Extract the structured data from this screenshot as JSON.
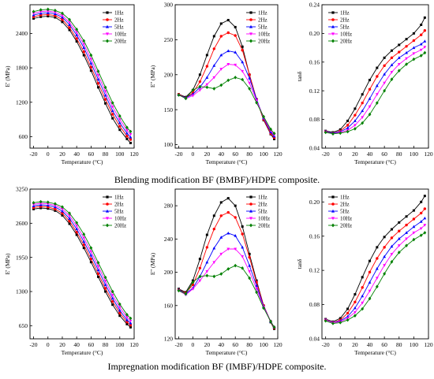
{
  "captions": {
    "top": "Blending modification BF (BMBF)/HDPE composite.",
    "bottom": "Impregnation modification BF (IMBF)/HDPE composite."
  },
  "series_colors": {
    "1Hz": "#000000",
    "2Hz": "#ff0000",
    "5Hz": "#0000ff",
    "10Hz": "#ff00ff",
    "20Hz": "#008000"
  },
  "chart_data": [
    {
      "type": "line",
      "row": "top",
      "col": 1,
      "xlabel": "Temperature (°C)",
      "ylabel": "E' (MPa)",
      "xlim": [
        -25,
        120
      ],
      "ylim": [
        400,
        2900
      ],
      "xticks": [
        "-20",
        "0",
        "20",
        "40",
        "60",
        "80",
        "100",
        "120"
      ],
      "yticks": [
        "600",
        "1200",
        "1800",
        "2400"
      ],
      "ytick_values": [
        600,
        1200,
        1800,
        2400
      ],
      "legend": "top-right",
      "x": [
        -20,
        -10,
        0,
        10,
        20,
        30,
        40,
        50,
        60,
        70,
        80,
        90,
        100,
        110,
        115
      ],
      "series": [
        {
          "name": "1Hz",
          "marker": "square",
          "values": [
            2660,
            2690,
            2700,
            2680,
            2600,
            2460,
            2260,
            2020,
            1750,
            1460,
            1180,
            920,
            720,
            560,
            490
          ]
        },
        {
          "name": "2Hz",
          "marker": "circle",
          "values": [
            2690,
            2720,
            2730,
            2710,
            2640,
            2500,
            2310,
            2080,
            1810,
            1530,
            1250,
            990,
            780,
            610,
            550
          ]
        },
        {
          "name": "5Hz",
          "marker": "triangle-up",
          "values": [
            2720,
            2750,
            2760,
            2740,
            2680,
            2550,
            2370,
            2150,
            1880,
            1600,
            1320,
            1050,
            840,
            660,
            590
          ]
        },
        {
          "name": "10Hz",
          "marker": "triangle-down",
          "values": [
            2750,
            2780,
            2790,
            2770,
            2710,
            2590,
            2420,
            2210,
            1950,
            1670,
            1390,
            1120,
            900,
            710,
            640
          ]
        },
        {
          "name": "20Hz",
          "marker": "diamond",
          "values": [
            2780,
            2810,
            2820,
            2800,
            2750,
            2640,
            2470,
            2270,
            2020,
            1740,
            1460,
            1190,
            960,
            760,
            690
          ]
        }
      ]
    },
    {
      "type": "line",
      "row": "top",
      "col": 2,
      "xlabel": "Temperature (°C)",
      "ylabel": "E'' (MPa)",
      "xlim": [
        -25,
        120
      ],
      "ylim": [
        95,
        300
      ],
      "xticks": [
        "-20",
        "0",
        "20",
        "40",
        "60",
        "80",
        "100",
        "120"
      ],
      "yticks": [
        "100",
        "150",
        "200",
        "250",
        "300"
      ],
      "ytick_values": [
        100,
        150,
        200,
        250,
        300
      ],
      "legend": "top-right",
      "x": [
        -20,
        -10,
        0,
        10,
        20,
        30,
        40,
        50,
        60,
        70,
        80,
        90,
        100,
        110,
        115
      ],
      "series": [
        {
          "name": "1Hz",
          "marker": "square",
          "values": [
            172,
            168,
            178,
            200,
            228,
            255,
            273,
            278,
            268,
            240,
            200,
            165,
            135,
            115,
            108
          ]
        },
        {
          "name": "2Hz",
          "marker": "circle",
          "values": [
            172,
            167,
            174,
            190,
            212,
            237,
            255,
            260,
            256,
            235,
            200,
            165,
            136,
            116,
            110
          ]
        },
        {
          "name": "5Hz",
          "marker": "triangle-up",
          "values": [
            171,
            167,
            172,
            182,
            196,
            213,
            228,
            234,
            232,
            218,
            195,
            165,
            138,
            118,
            112
          ]
        },
        {
          "name": "10Hz",
          "marker": "triangle-down",
          "values": [
            171,
            166,
            170,
            178,
            186,
            196,
            208,
            215,
            214,
            205,
            188,
            163,
            139,
            120,
            114
          ]
        },
        {
          "name": "20Hz",
          "marker": "diamond",
          "values": [
            171,
            166,
            178,
            183,
            182,
            180,
            185,
            192,
            196,
            193,
            180,
            160,
            140,
            122,
            116
          ]
        }
      ]
    },
    {
      "type": "line",
      "row": "top",
      "col": 3,
      "xlabel": "Temperature (°C)",
      "ylabel": "tanδ",
      "xlim": [
        -25,
        120
      ],
      "ylim": [
        0.04,
        0.24
      ],
      "xticks": [
        "-20",
        "0",
        "20",
        "40",
        "60",
        "80",
        "100",
        "120"
      ],
      "yticks": [
        "0.04",
        "0.08",
        "0.12",
        "0.16",
        "0.20",
        "0.24"
      ],
      "ytick_values": [
        0.04,
        0.08,
        0.12,
        0.16,
        0.2,
        0.24
      ],
      "legend": "top-left",
      "x": [
        -20,
        -10,
        0,
        10,
        20,
        30,
        40,
        50,
        60,
        70,
        80,
        90,
        100,
        110,
        115
      ],
      "series": [
        {
          "name": "1Hz",
          "marker": "square",
          "values": [
            0.064,
            0.062,
            0.066,
            0.078,
            0.095,
            0.115,
            0.135,
            0.152,
            0.166,
            0.176,
            0.184,
            0.192,
            0.2,
            0.212,
            0.222
          ]
        },
        {
          "name": "2Hz",
          "marker": "circle",
          "values": [
            0.063,
            0.061,
            0.064,
            0.072,
            0.086,
            0.103,
            0.122,
            0.14,
            0.155,
            0.166,
            0.174,
            0.182,
            0.19,
            0.198,
            0.204
          ]
        },
        {
          "name": "5Hz",
          "marker": "triangle-up",
          "values": [
            0.063,
            0.061,
            0.063,
            0.068,
            0.078,
            0.092,
            0.109,
            0.127,
            0.143,
            0.156,
            0.166,
            0.173,
            0.18,
            0.185,
            0.189
          ]
        },
        {
          "name": "10Hz",
          "marker": "triangle-down",
          "values": [
            0.063,
            0.06,
            0.062,
            0.065,
            0.072,
            0.083,
            0.098,
            0.115,
            0.131,
            0.146,
            0.157,
            0.165,
            0.172,
            0.177,
            0.181
          ]
        },
        {
          "name": "20Hz",
          "marker": "diamond",
          "values": [
            0.062,
            0.06,
            0.061,
            0.063,
            0.067,
            0.075,
            0.087,
            0.103,
            0.12,
            0.136,
            0.148,
            0.157,
            0.164,
            0.169,
            0.173
          ]
        }
      ]
    },
    {
      "type": "line",
      "row": "bottom",
      "col": 1,
      "xlabel": "Temperature (°C)",
      "ylabel": "E' (MPa)",
      "xlim": [
        -25,
        120
      ],
      "ylim": [
        400,
        3250
      ],
      "xticks": [
        "-20",
        "0",
        "20",
        "40",
        "60",
        "80",
        "100",
        "120"
      ],
      "yticks": [
        "650",
        "1300",
        "1950",
        "2600",
        "3250"
      ],
      "ytick_values": [
        650,
        1300,
        1950,
        2600,
        3250
      ],
      "legend": "top-right",
      "x": [
        -20,
        -10,
        0,
        10,
        20,
        30,
        40,
        50,
        60,
        70,
        80,
        90,
        100,
        110,
        115
      ],
      "series": [
        {
          "name": "1Hz",
          "marker": "square",
          "values": [
            2870,
            2890,
            2880,
            2840,
            2750,
            2590,
            2380,
            2130,
            1860,
            1580,
            1300,
            1050,
            840,
            680,
            620
          ]
        },
        {
          "name": "2Hz",
          "marker": "circle",
          "values": [
            2900,
            2920,
            2910,
            2870,
            2790,
            2640,
            2430,
            2190,
            1920,
            1640,
            1360,
            1110,
            890,
            720,
            660
          ]
        },
        {
          "name": "5Hz",
          "marker": "triangle-up",
          "values": [
            2930,
            2950,
            2940,
            2910,
            2830,
            2690,
            2490,
            2250,
            1990,
            1710,
            1430,
            1170,
            940,
            760,
            700
          ]
        },
        {
          "name": "10Hz",
          "marker": "triangle-down",
          "values": [
            2960,
            2980,
            2970,
            2940,
            2870,
            2740,
            2550,
            2320,
            2060,
            1780,
            1500,
            1230,
            1000,
            810,
            740
          ]
        },
        {
          "name": "20Hz",
          "marker": "diamond",
          "values": [
            2990,
            3010,
            3000,
            2970,
            2910,
            2790,
            2610,
            2390,
            2130,
            1850,
            1570,
            1300,
            1060,
            860,
            790
          ]
        }
      ]
    },
    {
      "type": "line",
      "row": "bottom",
      "col": 2,
      "xlabel": "Temperature (°C)",
      "ylabel": "E'' (MPa)",
      "xlim": [
        -25,
        120
      ],
      "ylim": [
        120,
        300
      ],
      "xticks": [
        "-20",
        "0",
        "20",
        "40",
        "60",
        "80",
        "100",
        "120"
      ],
      "yticks": [
        "120",
        "160",
        "200",
        "240",
        "280"
      ],
      "ytick_values": [
        120,
        160,
        200,
        240,
        280
      ],
      "legend": "top-right",
      "x": [
        -20,
        -10,
        0,
        10,
        20,
        30,
        40,
        50,
        60,
        70,
        80,
        90,
        100,
        110,
        115
      ],
      "series": [
        {
          "name": "1Hz",
          "marker": "square",
          "values": [
            180,
            176,
            190,
            216,
            245,
            268,
            284,
            289,
            280,
            255,
            222,
            190,
            160,
            140,
            132
          ]
        },
        {
          "name": "2Hz",
          "marker": "circle",
          "values": [
            179,
            175,
            185,
            205,
            230,
            252,
            268,
            272,
            266,
            246,
            218,
            188,
            160,
            141,
            133
          ]
        },
        {
          "name": "5Hz",
          "marker": "triangle-up",
          "values": [
            179,
            174,
            181,
            195,
            212,
            229,
            242,
            247,
            244,
            230,
            208,
            184,
            159,
            141,
            134
          ]
        },
        {
          "name": "10Hz",
          "marker": "triangle-down",
          "values": [
            178,
            173,
            180,
            190,
            201,
            212,
            222,
            228,
            228,
            219,
            201,
            180,
            158,
            141,
            134
          ]
        },
        {
          "name": "20Hz",
          "marker": "diamond",
          "values": [
            178,
            174,
            188,
            195,
            196,
            195,
            198,
            204,
            208,
            205,
            193,
            176,
            157,
            141,
            134
          ]
        }
      ]
    },
    {
      "type": "line",
      "row": "bottom",
      "col": 3,
      "xlabel": "Temperature (°C)",
      "ylabel": "tanδ",
      "xlim": [
        -25,
        120
      ],
      "ylim": [
        0.04,
        0.215
      ],
      "xticks": [
        "-20",
        "0",
        "20",
        "40",
        "60",
        "80",
        "100",
        "120"
      ],
      "yticks": [
        "0.04",
        "0.08",
        "0.12",
        "0.16",
        "0.20"
      ],
      "ytick_values": [
        0.04,
        0.08,
        0.12,
        0.16,
        0.2
      ],
      "legend": "top-left",
      "x": [
        -20,
        -10,
        0,
        10,
        20,
        30,
        40,
        50,
        60,
        70,
        80,
        90,
        100,
        110,
        115
      ],
      "series": [
        {
          "name": "1Hz",
          "marker": "square",
          "values": [
            0.063,
            0.06,
            0.064,
            0.075,
            0.092,
            0.112,
            0.131,
            0.147,
            0.159,
            0.168,
            0.176,
            0.183,
            0.19,
            0.2,
            0.207
          ]
        },
        {
          "name": "2Hz",
          "marker": "circle",
          "values": [
            0.062,
            0.059,
            0.062,
            0.07,
            0.083,
            0.1,
            0.118,
            0.134,
            0.147,
            0.158,
            0.166,
            0.173,
            0.18,
            0.187,
            0.192
          ]
        },
        {
          "name": "5Hz",
          "marker": "triangle-up",
          "values": [
            0.062,
            0.059,
            0.061,
            0.066,
            0.076,
            0.09,
            0.106,
            0.122,
            0.136,
            0.148,
            0.157,
            0.164,
            0.171,
            0.177,
            0.181
          ]
        },
        {
          "name": "10Hz",
          "marker": "triangle-down",
          "values": [
            0.062,
            0.059,
            0.06,
            0.064,
            0.071,
            0.082,
            0.096,
            0.111,
            0.126,
            0.139,
            0.149,
            0.157,
            0.164,
            0.169,
            0.173
          ]
        },
        {
          "name": "20Hz",
          "marker": "diamond",
          "values": [
            0.061,
            0.058,
            0.059,
            0.062,
            0.067,
            0.075,
            0.087,
            0.101,
            0.116,
            0.13,
            0.141,
            0.149,
            0.156,
            0.161,
            0.164
          ]
        }
      ]
    }
  ]
}
